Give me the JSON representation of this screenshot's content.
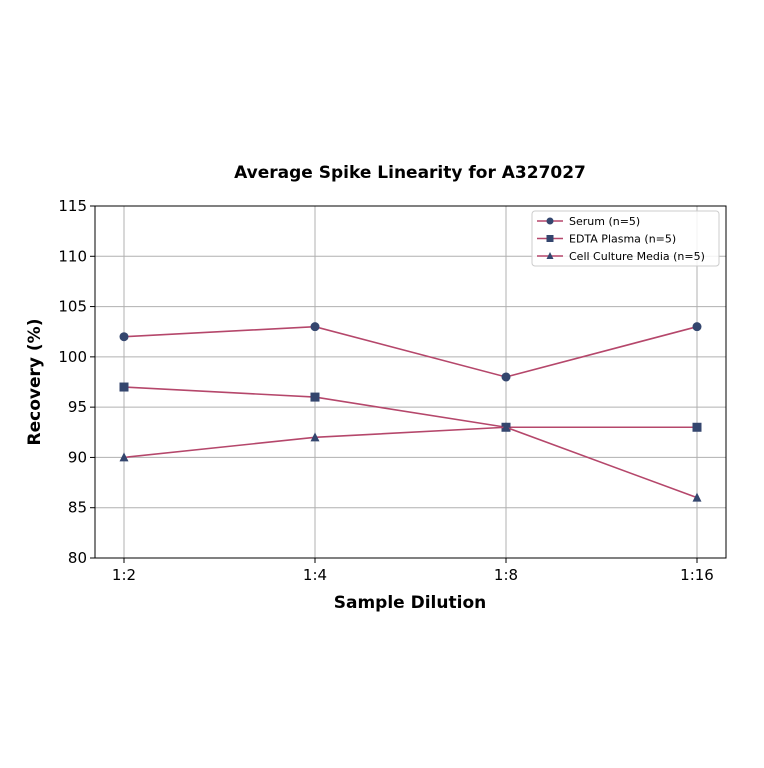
{
  "chart_data": {
    "type": "line",
    "title": "Average Spike Linearity for A327027",
    "xlabel": "Sample Dilution",
    "ylabel": "Recovery (%)",
    "categories": [
      "1:2",
      "1:4",
      "1:8",
      "1:16"
    ],
    "ylim": [
      80,
      115
    ],
    "yticks": [
      80,
      85,
      90,
      95,
      100,
      105,
      110,
      115
    ],
    "grid": true,
    "legend_position": "upper right",
    "series": [
      {
        "name": "Serum (n=5)",
        "marker": "circle",
        "values": [
          102,
          103,
          98,
          103
        ]
      },
      {
        "name": "EDTA Plasma (n=5)",
        "marker": "square",
        "values": [
          97,
          96,
          93,
          93
        ]
      },
      {
        "name": "Cell Culture Media (n=5)",
        "marker": "triangle",
        "values": [
          90,
          92,
          93,
          86
        ]
      }
    ],
    "colors": {
      "line": "#b5476b",
      "marker": "#34466e"
    }
  }
}
